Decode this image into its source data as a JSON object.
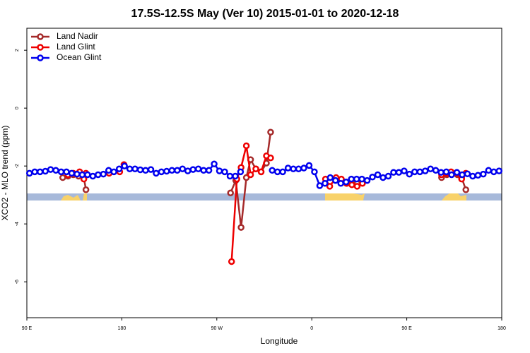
{
  "chart_data": {
    "type": "line",
    "title": "17.5S-12.5S May (Ver 10)   2015-01-01 to 2020-12-18",
    "x_label": "Longitude",
    "y_label": "XCO2 - MLO trend (ppm)",
    "xlim": [
      90,
      540
    ],
    "ylim": [
      -7.24,
      2.76
    ],
    "xticks": [
      {
        "value": 90,
        "label": "90 E"
      },
      180,
      {
        "value": 270,
        "label": "90 W"
      },
      {
        "value": 360,
        "label": "0"
      },
      {
        "value": 450,
        "label": "90 E"
      },
      {
        "value": 540,
        "label": "180"
      }
    ],
    "yticks": [
      2,
      0,
      -2,
      -4,
      -6
    ],
    "legend": "top-left",
    "series": [
      {
        "name": "Land Nadir",
        "color": "#a52a2a",
        "x": [
          124,
          129,
          134,
          139,
          144,
          146,
          200,
          283,
          288,
          293,
          298,
          302,
          307,
          312,
          317,
          321,
          350,
          388,
          393,
          398,
          403,
          408,
          450,
          483,
          488,
          492,
          498,
          502,
          506
        ],
        "values": [
          -2.4,
          -2.35,
          -2.3,
          -2.35,
          -2.4,
          -2.82,
          null,
          -2.93,
          -2.5,
          -4.12,
          -2.4,
          -1.78,
          -2.1,
          -2.2,
          -1.9,
          -0.83,
          null,
          -2.55,
          -2.6,
          -2.55,
          -2.6,
          -2.58,
          null,
          -2.4,
          -2.3,
          -2.25,
          -2.3,
          -2.4,
          -2.82
        ]
      },
      {
        "name": "Land Glint",
        "color": "#ee0000",
        "x": [
          129,
          134,
          140,
          144,
          146,
          157,
          168,
          178,
          182,
          230,
          284,
          289,
          293,
          298,
          302,
          307,
          312,
          317,
          321,
          350,
          373,
          377,
          383,
          388,
          393,
          398,
          403,
          408,
          450,
          483,
          488,
          492,
          498,
          502,
          506
        ],
        "values": [
          -2.3,
          -2.25,
          -2.2,
          -2.45,
          -2.25,
          null,
          -2.25,
          -2.2,
          -1.95,
          null,
          -5.3,
          -2.45,
          -2.05,
          -1.3,
          -2.3,
          -2.1,
          -2.2,
          -1.65,
          -1.72,
          null,
          -2.45,
          -2.7,
          -2.4,
          -2.45,
          -2.6,
          -2.65,
          -2.7,
          -2.6,
          null,
          -2.3,
          -2.25,
          -2.2,
          -2.25,
          -2.45,
          -2.25
        ]
      },
      {
        "name": "Ocean Glint",
        "color": "#0000ee",
        "x": [
          92.5,
          97.5,
          102.5,
          107.5,
          112.5,
          117.5,
          122.5,
          127.5,
          132.5,
          137.5,
          142.5,
          147.5,
          152.5,
          157.5,
          162.5,
          167.5,
          172.5,
          177.5,
          182.5,
          187.5,
          192.5,
          197.5,
          202.5,
          207.5,
          212.5,
          217.5,
          222.5,
          227.5,
          232.5,
          237.5,
          242.5,
          247.5,
          252.5,
          257.5,
          262.5,
          267.5,
          272.5,
          277.5,
          282.5,
          287.5,
          292.5,
          297.5,
          302.5,
          307.5,
          312.5,
          317.5,
          322.5,
          327.5,
          332.5,
          337.5,
          342.5,
          347.5,
          352.5,
          357.5,
          362.5,
          367.5,
          372.5,
          377.5,
          382.5,
          387.5,
          392.5,
          397.5,
          402.5,
          407.5,
          412.5,
          417.5,
          422.5,
          427.5,
          432.5,
          437.5,
          442.5,
          447.5,
          452.5,
          457.5,
          462.5,
          467.5,
          472.5,
          477.5,
          482.5,
          487.5,
          492.5,
          497.5,
          502.5,
          507.5,
          512.5,
          517.5,
          522.5,
          527.5,
          532.5,
          537.5
        ],
        "values": [
          -2.25,
          -2.2,
          -2.2,
          -2.18,
          -2.12,
          -2.15,
          -2.2,
          -2.2,
          -2.25,
          -2.28,
          -2.3,
          -2.3,
          -2.35,
          -2.3,
          -2.28,
          -2.15,
          -2.2,
          -2.1,
          -2.0,
          -2.1,
          -2.1,
          -2.13,
          -2.15,
          -2.12,
          -2.25,
          -2.2,
          -2.18,
          -2.15,
          -2.15,
          -2.1,
          -2.17,
          -2.12,
          -2.1,
          -2.15,
          -2.15,
          -1.93,
          -2.17,
          -2.2,
          -2.35,
          -2.35,
          -2.2,
          null,
          null,
          null,
          null,
          null,
          -2.15,
          -2.2,
          -2.2,
          -2.07,
          -2.1,
          -2.1,
          -2.07,
          -1.98,
          -2.2,
          -2.68,
          -2.6,
          -2.4,
          -2.5,
          -2.6,
          -2.55,
          -2.45,
          -2.45,
          -2.45,
          -2.5,
          -2.38,
          -2.3,
          -2.4,
          -2.35,
          -2.22,
          -2.22,
          -2.17,
          -2.28,
          -2.2,
          -2.2,
          -2.17,
          -2.1,
          -2.15,
          -2.22,
          -2.2,
          -2.3,
          -2.22,
          -2.3,
          -2.27,
          -2.35,
          -2.32,
          -2.28,
          -2.15,
          -2.2,
          -2.17
        ]
      }
    ]
  }
}
